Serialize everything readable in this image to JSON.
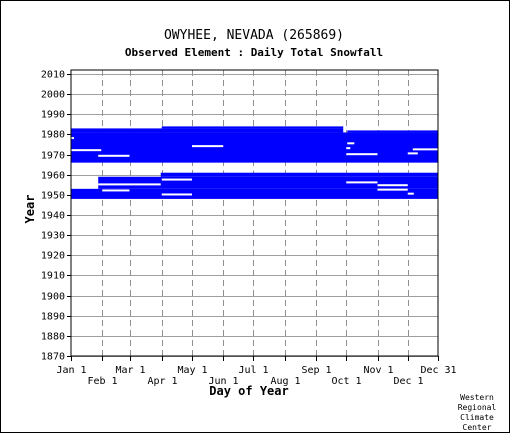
{
  "header": {
    "title": "OWYHEE, NEVADA   (265869)",
    "subtitle": "Observed Element : Daily Total Snowfall"
  },
  "credit": [
    "Western",
    "Regional",
    "Climate",
    "Center"
  ],
  "colors": {
    "bar": "#0000ff",
    "gridH": "#a0a0a0",
    "gridV": "#909090",
    "axis": "#000000"
  },
  "chart_data": {
    "type": "bar",
    "title": "OWYHEE, NEVADA   (265869)",
    "subtitle": "Observed Element : Daily Total Snowfall",
    "xlabel": "Day of Year",
    "ylabel": "Year",
    "xlim": [
      1,
      365
    ],
    "ylim": [
      1870,
      2012
    ],
    "grid": true,
    "x_ticks_row1": [
      {
        "label": "Jan 1",
        "day": 1
      },
      {
        "label": "Mar 1",
        "day": 60
      },
      {
        "label": "May 1",
        "day": 121
      },
      {
        "label": "Jul 1",
        "day": 182
      },
      {
        "label": "Sep 1",
        "day": 244
      },
      {
        "label": "Nov 1",
        "day": 305
      },
      {
        "label": "Dec 31",
        "day": 365
      }
    ],
    "x_ticks_row2": [
      {
        "label": "Feb 1",
        "day": 32
      },
      {
        "label": "Apr 1",
        "day": 91
      },
      {
        "label": "Jun 1",
        "day": 152
      },
      {
        "label": "Aug 1",
        "day": 213
      },
      {
        "label": "Oct 1",
        "day": 274
      },
      {
        "label": "Dec 1",
        "day": 335
      }
    ],
    "y_ticks": [
      2010,
      2000,
      1990,
      1980,
      1970,
      1960,
      1950,
      1940,
      1930,
      1920,
      1910,
      1900,
      1890,
      1880,
      1870
    ],
    "data_blocks": [
      {
        "start_year": 1948,
        "end_year": 1953,
        "start_day": 1,
        "end_day": 365
      },
      {
        "start_year": 1953,
        "end_year": 1959,
        "start_day": 28,
        "end_day": 365
      },
      {
        "start_year": 1959,
        "end_year": 1961,
        "start_day": 90,
        "end_day": 365
      },
      {
        "start_year": 1966,
        "end_year": 1981,
        "start_day": 1,
        "end_day": 365
      },
      {
        "start_year": 1981,
        "end_year": 1983,
        "start_day": 1,
        "end_day": 271
      },
      {
        "start_year": 1981,
        "end_year": 1982,
        "start_day": 275,
        "end_day": 365
      },
      {
        "start_year": 1983,
        "end_year": 1984,
        "start_day": 91,
        "end_day": 271
      }
    ],
    "gaps": [
      {
        "year": 1955.2,
        "start_day": 28,
        "end_day": 90
      },
      {
        "year": 1954.8,
        "start_day": 305,
        "end_day": 335
      },
      {
        "year": 1952.2,
        "start_day": 32,
        "end_day": 59
      },
      {
        "year": 1950.2,
        "start_day": 91,
        "end_day": 121
      },
      {
        "year": 1952.6,
        "start_day": 305,
        "end_day": 335
      },
      {
        "year": 1957.6,
        "start_day": 91,
        "end_day": 121
      },
      {
        "year": 1962.6,
        "start_day": 152,
        "end_day": 213
      },
      {
        "year": 1956.2,
        "start_day": 274,
        "end_day": 305
      },
      {
        "year": 1950.6,
        "start_day": 335,
        "end_day": 341
      },
      {
        "year": 1969.4,
        "start_day": 28,
        "end_day": 59
      },
      {
        "year": 1972.2,
        "start_day": 1,
        "end_day": 31
      },
      {
        "year": 1974.2,
        "start_day": 121,
        "end_day": 152
      },
      {
        "year": 1970.2,
        "start_day": 274,
        "end_day": 305
      },
      {
        "year": 1970.6,
        "start_day": 335,
        "end_day": 345
      },
      {
        "year": 1972.6,
        "start_day": 340,
        "end_day": 365
      },
      {
        "year": 1978.2,
        "start_day": 1,
        "end_day": 4
      },
      {
        "year": 1975.6,
        "start_day": 275,
        "end_day": 282
      },
      {
        "year": 1973.2,
        "start_day": 274,
        "end_day": 278
      }
    ]
  }
}
